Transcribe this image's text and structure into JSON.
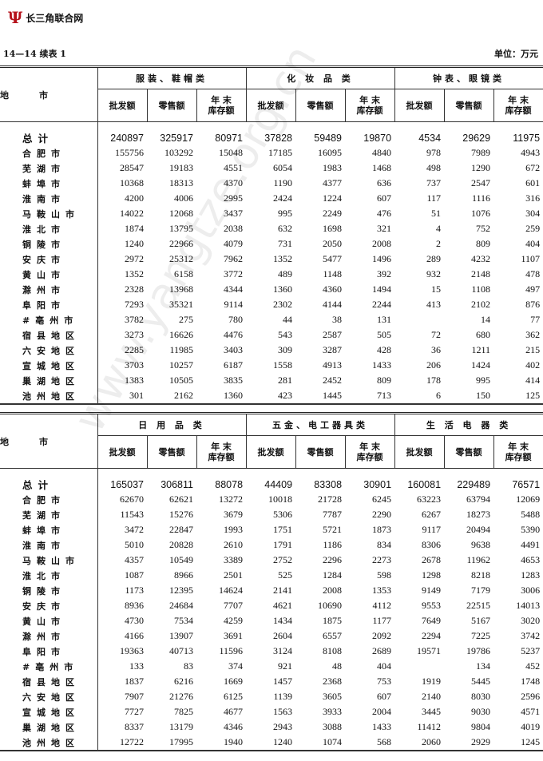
{
  "header": {
    "logo_text": "长三角联合网",
    "table_no": "14—14  续表 1",
    "unit": "单位：万元"
  },
  "watermark": "www.yangtze.org.cn",
  "area_header": "地市",
  "sub_headers": [
    "批发额",
    "零售额",
    "年  末\n库存额"
  ],
  "regions": [
    "总计",
    "合肥市",
    "芜湖市",
    "蚌埠市",
    "淮南市",
    "马鞍山市",
    "淮北市",
    "铜陵市",
    "安庆市",
    "黄山市",
    "滁州市",
    "阜阳市",
    "#亳州市",
    "宿县地区",
    "六安地区",
    "宣城地区",
    "巢湖地区",
    "池州地区"
  ],
  "tables": [
    {
      "groups": [
        "服装、鞋帽类",
        "化 妆 品 类",
        "钟表、眼镜类"
      ],
      "rows": [
        [
          "240897",
          "325917",
          "80971",
          "37828",
          "59489",
          "19870",
          "4534",
          "29629",
          "11975"
        ],
        [
          "155756",
          "103292",
          "15048",
          "17185",
          "16095",
          "4840",
          "978",
          "7989",
          "4943"
        ],
        [
          "28547",
          "19183",
          "4551",
          "6054",
          "1983",
          "1468",
          "498",
          "1290",
          "672"
        ],
        [
          "10368",
          "18313",
          "4370",
          "1190",
          "4377",
          "636",
          "737",
          "2547",
          "601"
        ],
        [
          "4200",
          "4006",
          "2995",
          "2424",
          "1224",
          "607",
          "117",
          "1116",
          "316"
        ],
        [
          "14022",
          "12068",
          "3437",
          "995",
          "2249",
          "476",
          "51",
          "1076",
          "304"
        ],
        [
          "1874",
          "13795",
          "2038",
          "632",
          "1698",
          "321",
          "4",
          "752",
          "259"
        ],
        [
          "1240",
          "22966",
          "4079",
          "731",
          "2050",
          "2008",
          "2",
          "809",
          "404"
        ],
        [
          "2972",
          "25312",
          "7962",
          "1352",
          "5477",
          "1496",
          "289",
          "4232",
          "1107"
        ],
        [
          "1352",
          "6158",
          "3772",
          "489",
          "1148",
          "392",
          "932",
          "2148",
          "478"
        ],
        [
          "2328",
          "13968",
          "4344",
          "1360",
          "4360",
          "1494",
          "15",
          "1108",
          "497"
        ],
        [
          "7293",
          "35321",
          "9114",
          "2302",
          "4144",
          "2244",
          "413",
          "2102",
          "876"
        ],
        [
          "3782",
          "275",
          "780",
          "44",
          "38",
          "131",
          "",
          "14",
          "77"
        ],
        [
          "3273",
          "16626",
          "4476",
          "543",
          "2587",
          "505",
          "72",
          "680",
          "362"
        ],
        [
          "2285",
          "11985",
          "3403",
          "309",
          "3287",
          "428",
          "36",
          "1211",
          "215"
        ],
        [
          "3703",
          "10257",
          "6187",
          "1558",
          "4913",
          "1433",
          "206",
          "1424",
          "402"
        ],
        [
          "1383",
          "10505",
          "3835",
          "281",
          "2452",
          "809",
          "178",
          "995",
          "414"
        ],
        [
          "301",
          "2162",
          "1360",
          "423",
          "1445",
          "713",
          "6",
          "150",
          "125"
        ]
      ]
    },
    {
      "groups": [
        "日 用 品 类",
        "五金、电工器具类",
        "生 活 电 器 类"
      ],
      "rows": [
        [
          "165037",
          "306811",
          "88078",
          "44409",
          "83308",
          "30901",
          "160081",
          "229489",
          "76571"
        ],
        [
          "62670",
          "62621",
          "13272",
          "10018",
          "21728",
          "6245",
          "63223",
          "63794",
          "12069"
        ],
        [
          "11543",
          "15276",
          "3679",
          "5306",
          "7787",
          "2290",
          "6267",
          "18273",
          "5488"
        ],
        [
          "3472",
          "22847",
          "1993",
          "1751",
          "5721",
          "1873",
          "9117",
          "20494",
          "5390"
        ],
        [
          "5010",
          "20828",
          "2610",
          "1791",
          "1186",
          "834",
          "8306",
          "9638",
          "4491"
        ],
        [
          "4357",
          "10549",
          "3389",
          "2752",
          "2296",
          "2273",
          "2678",
          "11962",
          "4653"
        ],
        [
          "1087",
          "8966",
          "2501",
          "525",
          "1284",
          "598",
          "1298",
          "8218",
          "1283"
        ],
        [
          "1173",
          "12395",
          "14624",
          "2141",
          "2008",
          "1353",
          "9149",
          "7179",
          "3006"
        ],
        [
          "8936",
          "24684",
          "7707",
          "4621",
          "10690",
          "4112",
          "9553",
          "22515",
          "14013"
        ],
        [
          "4730",
          "7534",
          "4259",
          "1434",
          "1875",
          "1177",
          "7649",
          "5167",
          "3020"
        ],
        [
          "4166",
          "13907",
          "3691",
          "2604",
          "6557",
          "2092",
          "2294",
          "7225",
          "3742"
        ],
        [
          "19363",
          "40713",
          "11596",
          "3124",
          "8108",
          "2689",
          "19571",
          "19786",
          "5237"
        ],
        [
          "133",
          "83",
          "374",
          "921",
          "48",
          "404",
          "",
          "134",
          "452"
        ],
        [
          "1837",
          "6216",
          "1669",
          "1457",
          "2368",
          "753",
          "1919",
          "5445",
          "1748"
        ],
        [
          "7907",
          "21276",
          "6125",
          "1139",
          "3605",
          "607",
          "2140",
          "8030",
          "2596"
        ],
        [
          "7727",
          "7825",
          "4677",
          "1563",
          "3933",
          "2004",
          "3445",
          "9030",
          "4571"
        ],
        [
          "8337",
          "13179",
          "4346",
          "2943",
          "3088",
          "1433",
          "11412",
          "9804",
          "4019"
        ],
        [
          "12722",
          "17995",
          "1940",
          "1240",
          "1074",
          "568",
          "2060",
          "2929",
          "1245"
        ]
      ]
    }
  ]
}
